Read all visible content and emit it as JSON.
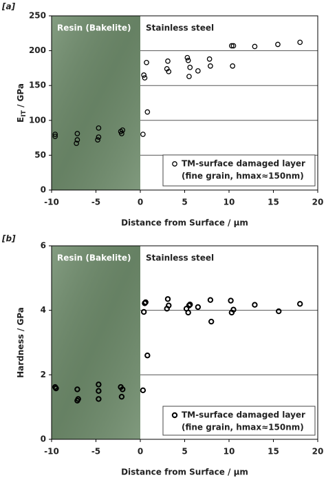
{
  "chart_data": [
    {
      "type": "scatter",
      "panel_label": "[a]",
      "x_label": "Distance from Surface / µm",
      "y_label_parts": [
        "E",
        "IT",
        " / GPa"
      ],
      "annotations": [
        "Resin (Bakelite)",
        "Stainless steel"
      ],
      "shaded_xrange": [
        -10,
        0
      ],
      "shade_color": "#6f8c6c",
      "xlim": [
        -10,
        20
      ],
      "xticks": [
        -10,
        -5,
        0,
        5,
        10,
        15,
        20
      ],
      "ylim": [
        0,
        250
      ],
      "yticks": [
        0,
        50,
        100,
        150,
        200,
        250
      ],
      "grid": true,
      "legend_note": "(fine grain, hmax≈150nm)",
      "series": [
        {
          "name": "TM-surface damaged layer",
          "color": "#000000",
          "x": [
            -9.6,
            -9.6,
            -7.1,
            -7.1,
            -7.2,
            -4.7,
            -4.7,
            -4.8,
            -2.2,
            -2.0,
            -2.1,
            0.3,
            0.4,
            0.5,
            0.7,
            0.8,
            3.0,
            3.1,
            3.2,
            5.3,
            5.4,
            5.5,
            5.6,
            6.5,
            7.8,
            7.9,
            10.3,
            10.4,
            10.5,
            12.9,
            15.5,
            18.0
          ],
          "values": [
            80,
            77,
            81,
            72,
            67,
            89,
            76,
            72,
            84,
            86,
            81,
            80,
            165,
            161,
            183,
            112,
            174,
            185,
            170,
            190,
            186,
            163,
            176,
            171,
            188,
            178,
            207,
            178,
            207,
            206,
            209,
            212
          ]
        }
      ]
    },
    {
      "type": "scatter",
      "panel_label": "[b]",
      "x_label": "Distance from Surface / µm",
      "y_label_parts": [
        "Hardness / GPa"
      ],
      "annotations": [
        "Resin (Bakelite)",
        "Stainless steel"
      ],
      "shaded_xrange": [
        -10,
        0
      ],
      "shade_color": "#6f8c6c",
      "xlim": [
        -10,
        20
      ],
      "xticks": [
        -10,
        -5,
        0,
        5,
        10,
        15,
        20
      ],
      "ylim": [
        0,
        6
      ],
      "yticks": [
        0,
        2,
        4,
        6
      ],
      "grid": true,
      "legend_note": "(fine grain, hmax≈150nm)",
      "series": [
        {
          "name": "TM-surface damaged layer",
          "color": "#000000",
          "x": [
            -9.6,
            -9.5,
            -7.1,
            -7.0,
            -7.1,
            -4.7,
            -4.7,
            -4.7,
            -2.2,
            -2.0,
            -2.1,
            0.3,
            0.4,
            0.5,
            0.6,
            0.8,
            3.0,
            3.1,
            3.2,
            5.2,
            5.4,
            5.5,
            5.6,
            6.5,
            7.9,
            8.0,
            10.2,
            10.3,
            10.5,
            12.9,
            15.6,
            18.0
          ],
          "values": [
            1.62,
            1.58,
            1.55,
            1.25,
            1.2,
            1.7,
            1.5,
            1.25,
            1.62,
            1.55,
            1.32,
            1.52,
            3.95,
            4.22,
            4.25,
            2.6,
            4.05,
            4.35,
            4.15,
            4.05,
            3.93,
            4.15,
            4.18,
            4.1,
            4.32,
            3.65,
            4.3,
            3.93,
            4.02,
            4.17,
            3.97,
            4.2
          ]
        }
      ]
    }
  ]
}
